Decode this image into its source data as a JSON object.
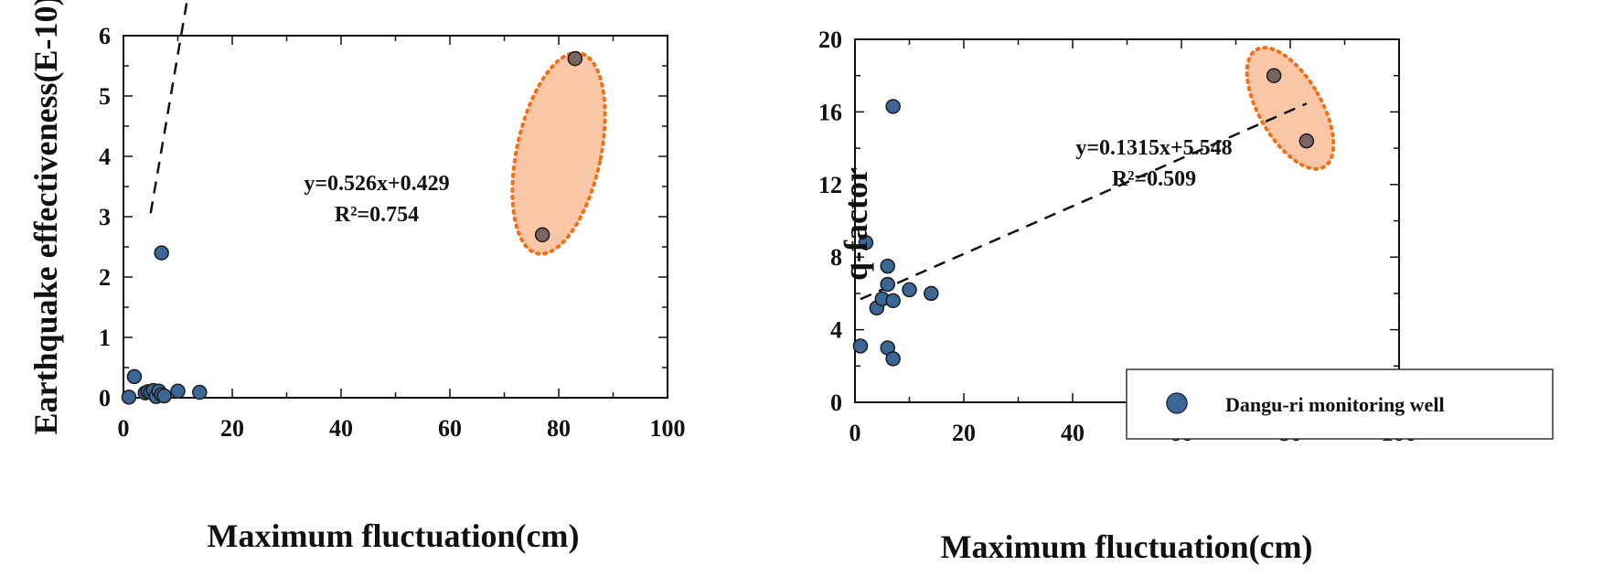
{
  "chart_data": [
    {
      "type": "scatter",
      "title": "",
      "xlabel": "Maximum fluctuation(cm)",
      "ylabel": "Earthquake effectiveness(E-10)",
      "xlim": [
        0,
        100
      ],
      "ylim": [
        0,
        6
      ],
      "xticks": [
        "0",
        "20",
        "40",
        "60",
        "80",
        "100"
      ],
      "yticks": [
        "0",
        "1",
        "2",
        "3",
        "4",
        "5",
        "6"
      ],
      "series": [
        {
          "points": [
            [
              1,
              0.01
            ],
            [
              2,
              0.35
            ],
            [
              4,
              0.08
            ],
            [
              4.5,
              0.1
            ],
            [
              5,
              0.09
            ],
            [
              5.5,
              0.12
            ],
            [
              6,
              0.02
            ],
            [
              6.5,
              0.11
            ],
            [
              7,
              0.05
            ],
            [
              7,
              2.4
            ],
            [
              7.5,
              0.03
            ],
            [
              10,
              0.11
            ],
            [
              14,
              0.09
            ]
          ],
          "color": "#3b6796"
        },
        {
          "points": [
            [
              77,
              2.7
            ],
            [
              83,
              5.62
            ]
          ],
          "color": "#7a6560"
        }
      ],
      "trendline": {
        "slope": 0.526,
        "intercept": 0.429,
        "x_range": [
          5,
          83
        ],
        "style": "dashed"
      },
      "equation": "y=0.526x+0.429",
      "r2": "R²=0.754",
      "highlight": {
        "shape": "ellipse",
        "center": [
          80,
          4.05
        ],
        "color": "#f9c7a8",
        "border": "#f26f16"
      },
      "grid": false
    },
    {
      "type": "scatter",
      "title": "",
      "xlabel": "Maximum fluctuation(cm)",
      "ylabel": "q-factor",
      "xlim": [
        0,
        100
      ],
      "ylim": [
        0,
        20
      ],
      "xticks": [
        "0",
        "20",
        "40",
        "60",
        "80",
        "100"
      ],
      "yticks": [
        "0",
        "4",
        "8",
        "12",
        "16",
        "20"
      ],
      "series": [
        {
          "name": "Dangu-ri monitoring well",
          "points": [
            [
              1,
              3.1
            ],
            [
              2,
              8.8
            ],
            [
              4,
              5.2
            ],
            [
              5,
              5.7
            ],
            [
              6,
              7.5
            ],
            [
              6,
              6.5
            ],
            [
              6,
              3.0
            ],
            [
              7,
              2.4
            ],
            [
              7,
              5.6
            ],
            [
              7,
              16.3
            ],
            [
              10,
              6.2
            ],
            [
              14,
              6.0
            ]
          ],
          "color": "#3b6796"
        },
        {
          "points": [
            [
              77,
              18.0
            ],
            [
              83,
              14.4
            ]
          ],
          "color": "#7a6560"
        }
      ],
      "trendline": {
        "slope": 0.1315,
        "intercept": 5.548,
        "x_range": [
          1,
          83
        ],
        "style": "dashed"
      },
      "equation": "y=0.1315x+5.548",
      "r2": "R²=0.509",
      "highlight": {
        "shape": "ellipse",
        "center": [
          80,
          16.2
        ],
        "color": "#f9c7a8",
        "border": "#f26f16"
      },
      "legend": {
        "placement": "bottom-right",
        "label": "Dangu-ri monitoring well"
      },
      "grid": false
    }
  ]
}
